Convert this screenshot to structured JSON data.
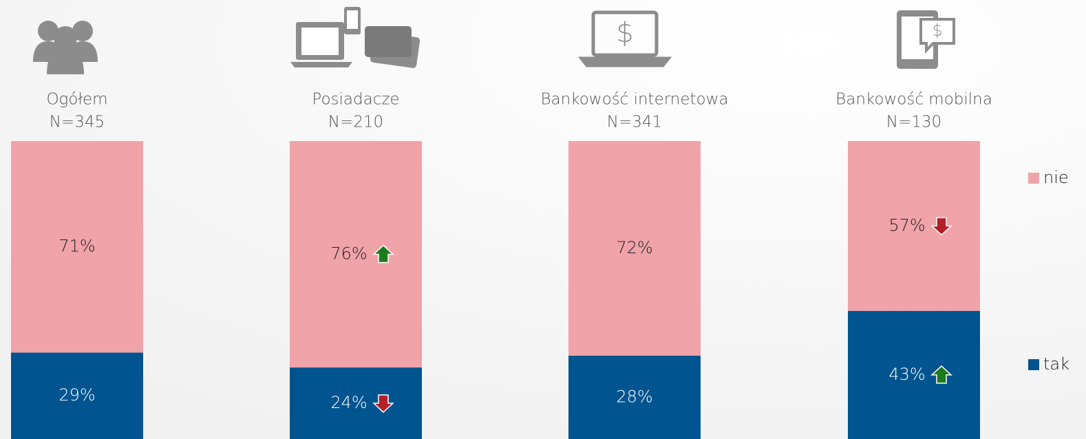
{
  "chart_data": {
    "type": "stacked_bar",
    "categories": [
      "Ogółem",
      "Posiadacze",
      "Bankowość internetowa",
      "Bankowość mobilna"
    ],
    "sample_sizes": [
      "N=345",
      "N=210",
      "N=341",
      "N=130"
    ],
    "series": [
      {
        "name": "tak",
        "color": "#00548f",
        "values": [
          29,
          24,
          28,
          43
        ],
        "value_labels": [
          "29%",
          "24%",
          "28%",
          "43%"
        ],
        "arrows": [
          null,
          "down",
          null,
          "up"
        ]
      },
      {
        "name": "nie",
        "color": "#f0a3a9",
        "values": [
          71,
          76,
          72,
          57
        ],
        "value_labels": [
          "71%",
          "76%",
          "72%",
          "57%"
        ],
        "arrows": [
          null,
          "up",
          null,
          "down"
        ]
      }
    ],
    "legend": "right"
  }
}
